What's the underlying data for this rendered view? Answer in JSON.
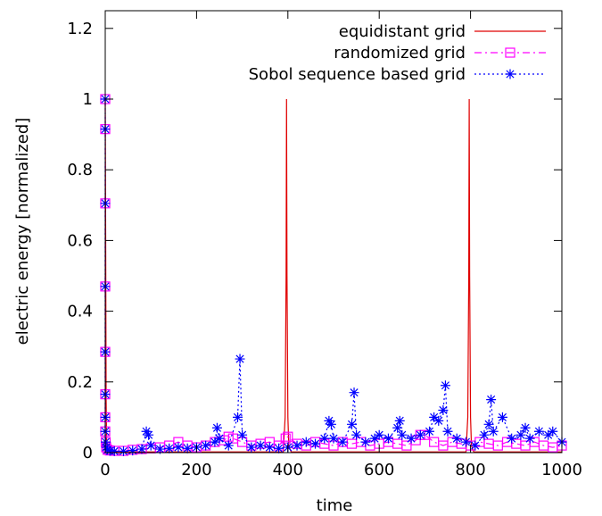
{
  "chart_data": {
    "type": "line",
    "title": "",
    "xlabel": "time",
    "ylabel": "electric energy [normalized]",
    "xlim": [
      0,
      1000
    ],
    "ylim": [
      0,
      1.25
    ],
    "grid": false,
    "legend_position": "top-right",
    "x_ticks": [
      0,
      200,
      400,
      600,
      800,
      1000
    ],
    "x_tick_labels": [
      "0",
      "200",
      "400",
      "600",
      "800",
      "1000"
    ],
    "y_ticks": [
      0,
      0.2,
      0.4,
      0.6,
      0.8,
      1,
      1.2
    ],
    "y_tick_labels": [
      "0",
      "0.2",
      "0.4",
      "0.6",
      "0.8",
      "1",
      "1.2"
    ],
    "series": [
      {
        "name": "equidistant grid",
        "color": "#e00000",
        "line": "solid",
        "marker": "none",
        "x": [
          0,
          1,
          2,
          3,
          5,
          10,
          20,
          390,
          394,
          396,
          397,
          398,
          400,
          402,
          407,
          790,
          794,
          796,
          797,
          798,
          800,
          802,
          807,
          1000
        ],
        "y": [
          1,
          0.6,
          0.15,
          0.04,
          0.01,
          0.003,
          0.002,
          0.002,
          0.1,
          0.5,
          1.0,
          0.5,
          0.1,
          0.02,
          0.002,
          0.002,
          0.1,
          0.5,
          1.0,
          0.5,
          0.1,
          0.02,
          0.002,
          0.002
        ]
      },
      {
        "name": "randomized grid",
        "color": "#ff00ff",
        "line": "dash-dot",
        "marker": "square",
        "x": [
          0,
          0,
          0,
          0,
          0,
          0,
          0,
          0,
          1,
          2,
          5,
          10,
          20,
          40,
          60,
          80,
          100,
          120,
          140,
          160,
          180,
          200,
          220,
          240,
          260,
          270,
          280,
          300,
          320,
          340,
          360,
          380,
          395,
          400,
          420,
          440,
          460,
          480,
          500,
          520,
          540,
          560,
          580,
          600,
          620,
          640,
          660,
          680,
          690,
          700,
          720,
          740,
          760,
          780,
          800,
          820,
          840,
          860,
          880,
          900,
          920,
          940,
          960,
          980,
          1000
        ],
        "y": [
          1,
          0.915,
          0.705,
          0.47,
          0.285,
          0.165,
          0.1,
          0.06,
          0.03,
          0.015,
          0.008,
          0.006,
          0.005,
          0.005,
          0.008,
          0.01,
          0.012,
          0.015,
          0.02,
          0.03,
          0.02,
          0.015,
          0.02,
          0.03,
          0.035,
          0.045,
          0.04,
          0.03,
          0.02,
          0.025,
          0.03,
          0.02,
          0.04,
          0.045,
          0.025,
          0.02,
          0.03,
          0.025,
          0.02,
          0.03,
          0.025,
          0.03,
          0.02,
          0.025,
          0.03,
          0.025,
          0.02,
          0.035,
          0.05,
          0.05,
          0.03,
          0.02,
          0.03,
          0.025,
          0.02,
          0.03,
          0.025,
          0.02,
          0.03,
          0.025,
          0.02,
          0.03,
          0.02,
          0.015,
          0.02
        ]
      },
      {
        "name": "Sobol sequence based grid",
        "color": "#0000ff",
        "line": "dotted",
        "marker": "star",
        "x": [
          0,
          0,
          0,
          0,
          0,
          0,
          0,
          0,
          1,
          2,
          5,
          10,
          20,
          40,
          60,
          80,
          90,
          95,
          100,
          120,
          140,
          160,
          180,
          200,
          220,
          240,
          245,
          250,
          270,
          290,
          295,
          300,
          320,
          340,
          360,
          380,
          400,
          420,
          440,
          460,
          480,
          490,
          495,
          500,
          520,
          540,
          545,
          550,
          570,
          590,
          600,
          620,
          640,
          645,
          650,
          670,
          690,
          710,
          720,
          730,
          740,
          745,
          750,
          770,
          790,
          810,
          830,
          840,
          845,
          850,
          870,
          890,
          910,
          920,
          930,
          950,
          970,
          980,
          1000
        ],
        "y": [
          1,
          0.915,
          0.705,
          0.47,
          0.285,
          0.165,
          0.1,
          0.06,
          0.03,
          0.015,
          0.008,
          0.005,
          0.004,
          0.004,
          0.006,
          0.01,
          0.06,
          0.05,
          0.02,
          0.01,
          0.012,
          0.015,
          0.012,
          0.015,
          0.02,
          0.03,
          0.07,
          0.04,
          0.02,
          0.1,
          0.265,
          0.05,
          0.015,
          0.02,
          0.015,
          0.012,
          0.015,
          0.02,
          0.03,
          0.025,
          0.04,
          0.09,
          0.08,
          0.04,
          0.03,
          0.08,
          0.17,
          0.05,
          0.03,
          0.04,
          0.05,
          0.04,
          0.07,
          0.09,
          0.05,
          0.04,
          0.05,
          0.06,
          0.1,
          0.09,
          0.12,
          0.19,
          0.06,
          0.04,
          0.03,
          0.02,
          0.05,
          0.08,
          0.15,
          0.06,
          0.1,
          0.04,
          0.05,
          0.07,
          0.04,
          0.06,
          0.05,
          0.06,
          0.03
        ]
      }
    ]
  }
}
